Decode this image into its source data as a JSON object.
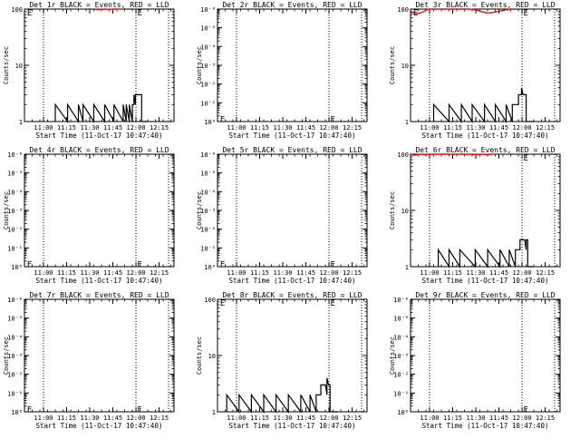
{
  "chart_data": [
    {
      "type": "line",
      "title": "Det 1r BLACK = Events, RED = LLD",
      "xlabel": "Start Time (11-Oct-17 10:47:40)",
      "ylabel": "Counts/sec",
      "yscale": "log",
      "ylim": [
        1,
        100
      ],
      "y_tick_labels": [
        "1",
        "10",
        "100"
      ],
      "xlim_minutes_after_start": [
        0,
        97
      ],
      "x_tick_labels": [
        "11:00",
        "11:15",
        "11:30",
        "11:45",
        "12:00",
        "12:15"
      ],
      "x_tick_positions_minutes": [
        12.33,
        27.33,
        42.33,
        57.33,
        72.33,
        87.33
      ],
      "dotted_vertical_lines_minutes": [
        12.33,
        72.33,
        93.5
      ],
      "series": [
        {
          "color": "#000000",
          "points": [
            [
              20,
              1
            ],
            [
              20,
              2
            ],
            [
              28,
              1
            ],
            [
              28,
              2
            ],
            [
              35,
              1
            ],
            [
              35,
              2
            ],
            [
              38,
              1
            ],
            [
              38,
              2
            ],
            [
              45,
              1
            ],
            [
              45,
              2
            ],
            [
              52,
              1
            ],
            [
              52,
              2
            ],
            [
              58,
              1
            ],
            [
              58,
              2
            ],
            [
              64,
              1
            ],
            [
              64,
              2
            ],
            [
              66,
              1
            ],
            [
              66,
              2
            ],
            [
              68,
              1
            ],
            [
              68,
              2
            ],
            [
              70,
              1
            ],
            [
              70,
              2
            ],
            [
              71,
              2
            ],
            [
              71,
              3
            ],
            [
              72,
              2
            ],
            [
              72,
              3
            ],
            [
              73,
              3
            ],
            [
              76,
              3
            ],
            [
              76,
              1
            ],
            [
              80,
              1
            ]
          ]
        },
        {
          "color": "#e01010",
          "points": [
            [
              45,
              100
            ],
            [
              48,
              98
            ],
            [
              52,
              100
            ],
            [
              55,
              99
            ],
            [
              58,
              100
            ],
            [
              62,
              100
            ]
          ]
        }
      ],
      "marker": {
        "label": "E",
        "positions": [
          [
            0.5,
            90
          ],
          [
            72,
            90
          ]
        ]
      }
    },
    {
      "type": "line",
      "title": "Det 2r BLACK = Events, RED = LLD",
      "xlabel": "Start Time (11-Oct-17 10:47:40)",
      "ylabel": "Counts/sec",
      "yscale": "log",
      "ylim": [
        1,
        1000000
      ],
      "y_tick_labels": [
        "10⁰",
        "10⁻¹",
        "10⁻²",
        "10⁻³",
        "10⁻⁴",
        "10⁻⁵",
        "10⁻⁶"
      ],
      "xlim_minutes_after_start": [
        0,
        97
      ],
      "x_tick_labels": [
        "11:00",
        "11:15",
        "11:30",
        "11:45",
        "12:00",
        "12:15"
      ],
      "x_tick_positions_minutes": [
        12.33,
        27.33,
        42.33,
        57.33,
        72.33,
        87.33
      ],
      "dotted_vertical_lines_minutes": [
        12.33,
        72.33,
        93.5
      ],
      "series": [],
      "marker": {
        "label": "E",
        "positions": [
          [
            0.5,
            1.5
          ],
          [
            72,
            1.5
          ]
        ]
      }
    },
    {
      "type": "line",
      "title": "Det 3r BLACK = Events, RED = LLD",
      "xlabel": "Start Time (11-Oct-17 10:47:40)",
      "ylabel": "Counts/sec",
      "yscale": "log",
      "ylim": [
        1,
        100
      ],
      "y_tick_labels": [
        "1",
        "10",
        "100"
      ],
      "xlim_minutes_after_start": [
        0,
        97
      ],
      "x_tick_labels": [
        "11:00",
        "11:15",
        "11:30",
        "11:45",
        "12:00",
        "12:15"
      ],
      "x_tick_positions_minutes": [
        12.33,
        27.33,
        42.33,
        57.33,
        72.33,
        87.33
      ],
      "dotted_vertical_lines_minutes": [
        12.33,
        72.33,
        93.5
      ],
      "series": [
        {
          "color": "#000000",
          "points": [
            [
              15,
              1
            ],
            [
              15,
              2
            ],
            [
              25,
              1
            ],
            [
              25,
              2
            ],
            [
              33,
              1
            ],
            [
              33,
              2
            ],
            [
              40,
              1
            ],
            [
              40,
              2
            ],
            [
              48,
              1
            ],
            [
              48,
              2
            ],
            [
              55,
              1
            ],
            [
              55,
              2
            ],
            [
              62,
              1
            ],
            [
              62,
              2
            ],
            [
              66,
              1
            ],
            [
              66,
              2
            ],
            [
              69,
              2
            ],
            [
              70,
              2
            ],
            [
              70,
              3
            ],
            [
              72,
              3
            ],
            [
              72,
              4
            ],
            [
              73,
              3
            ],
            [
              75,
              3
            ],
            [
              75,
              1
            ],
            [
              80,
              1
            ]
          ]
        },
        {
          "color": "#e01010",
          "points": [
            [
              0.5,
              88
            ],
            [
              4,
              82
            ],
            [
              8,
              88
            ],
            [
              10,
              96
            ],
            [
              12,
              100
            ],
            [
              38,
              100
            ],
            [
              42,
              97
            ],
            [
              46,
              90
            ],
            [
              50,
              85
            ],
            [
              54,
              88
            ],
            [
              58,
              92
            ],
            [
              62,
              97
            ],
            [
              65,
              100
            ],
            [
              68,
              100
            ]
          ]
        }
      ],
      "marker": {
        "label": "E",
        "positions": [
          [
            0.5,
            90
          ],
          [
            72,
            90
          ]
        ]
      }
    },
    {
      "type": "line",
      "title": "Det 4r BLACK = Events, RED = LLD",
      "xlabel": "Start Time (11-Oct-17 10:47:40)",
      "ylabel": "Counts/sec",
      "yscale": "log",
      "ylim": [
        1,
        1000000
      ],
      "y_tick_labels": [
        "10⁰",
        "10⁻¹",
        "10⁻²",
        "10⁻³",
        "10⁻⁴",
        "10⁻⁵",
        "10⁻⁶"
      ],
      "xlim_minutes_after_start": [
        0,
        97
      ],
      "x_tick_labels": [
        "11:00",
        "11:15",
        "11:30",
        "11:45",
        "12:00",
        "12:15"
      ],
      "x_tick_positions_minutes": [
        12.33,
        27.33,
        42.33,
        57.33,
        72.33,
        87.33
      ],
      "dotted_vertical_lines_minutes": [
        12.33,
        72.33,
        93.5
      ],
      "series": [],
      "marker": {
        "label": "E",
        "positions": [
          [
            0.5,
            1.5
          ],
          [
            72,
            1.5
          ]
        ]
      }
    },
    {
      "type": "line",
      "title": "Det 5r BLACK = Events, RED = LLD",
      "xlabel": "Start Time (11-Oct-17 10:47:40)",
      "ylabel": "Counts/sec",
      "yscale": "log",
      "ylim": [
        1,
        1000000
      ],
      "y_tick_labels": [
        "10⁰",
        "10⁻¹",
        "10⁻²",
        "10⁻³",
        "10⁻⁴",
        "10⁻⁵",
        "10⁻⁶"
      ],
      "xlim_minutes_after_start": [
        0,
        97
      ],
      "x_tick_labels": [
        "11:00",
        "11:15",
        "11:30",
        "11:45",
        "12:00",
        "12:15"
      ],
      "x_tick_positions_minutes": [
        12.33,
        27.33,
        42.33,
        57.33,
        72.33,
        87.33
      ],
      "dotted_vertical_lines_minutes": [
        12.33,
        72.33,
        93.5
      ],
      "series": [],
      "marker": {
        "label": "E",
        "positions": [
          [
            0.5,
            1.5
          ],
          [
            72,
            1.5
          ]
        ]
      }
    },
    {
      "type": "line",
      "title": "Det 6r BLACK = Events, RED = LLD",
      "xlabel": "Start Time (11-Oct-17 10:47:40)",
      "ylabel": "Counts/sec",
      "yscale": "log",
      "ylim": [
        1,
        100
      ],
      "y_tick_labels": [
        "1",
        "10",
        "100"
      ],
      "xlim_minutes_after_start": [
        0,
        97
      ],
      "x_tick_labels": [
        "11:00",
        "11:15",
        "11:30",
        "11:45",
        "12:00",
        "12:15"
      ],
      "x_tick_positions_minutes": [
        12.33,
        27.33,
        42.33,
        57.33,
        72.33,
        87.33
      ],
      "dotted_vertical_lines_minutes": [
        12.33,
        72.33,
        93.5
      ],
      "series": [
        {
          "color": "#000000",
          "points": [
            [
              18,
              1
            ],
            [
              18,
              2
            ],
            [
              25,
              1
            ],
            [
              25,
              2
            ],
            [
              32,
              1
            ],
            [
              32,
              2
            ],
            [
              42,
              1
            ],
            [
              42,
              2
            ],
            [
              50,
              1
            ],
            [
              50,
              2
            ],
            [
              58,
              1
            ],
            [
              58,
              2
            ],
            [
              64,
              1
            ],
            [
              64,
              2
            ],
            [
              68,
              1
            ],
            [
              68,
              2
            ],
            [
              70,
              2
            ],
            [
              71,
              2
            ],
            [
              71,
              3
            ],
            [
              74,
              3
            ],
            [
              75,
              2
            ],
            [
              75,
              3
            ],
            [
              76,
              3
            ],
            [
              76,
              1
            ],
            [
              80,
              1
            ]
          ]
        },
        {
          "color": "#e01010",
          "points": [
            [
              0.5,
              98
            ],
            [
              3,
              96
            ],
            [
              6,
              100
            ],
            [
              10,
              98
            ],
            [
              12,
              100
            ],
            [
              40,
              100
            ],
            [
              43,
              98
            ],
            [
              46,
              100
            ],
            [
              50,
              98
            ],
            [
              53,
              100
            ]
          ]
        }
      ],
      "marker": {
        "label": "E",
        "positions": [
          [
            72,
            90
          ]
        ]
      }
    },
    {
      "type": "line",
      "title": "Det 7r BLACK = Events, RED = LLD",
      "xlabel": "Start Time (11-Oct-17 10:47:40)",
      "ylabel": "Counts/sec",
      "yscale": "log",
      "ylim": [
        1,
        1000000
      ],
      "y_tick_labels": [
        "10⁰",
        "10⁻¹",
        "10⁻²",
        "10⁻³",
        "10⁻⁴",
        "10⁻⁵",
        "10⁻⁶"
      ],
      "xlim_minutes_after_start": [
        0,
        97
      ],
      "x_tick_labels": [
        "11:00",
        "11:15",
        "11:30",
        "11:45",
        "12:00",
        "12:15"
      ],
      "x_tick_positions_minutes": [
        12.33,
        27.33,
        42.33,
        57.33,
        72.33,
        87.33
      ],
      "dotted_vertical_lines_minutes": [
        12.33,
        72.33,
        93.5
      ],
      "series": [],
      "marker": {
        "label": "E",
        "positions": [
          [
            0.5,
            1.5
          ],
          [
            72,
            1.5
          ]
        ]
      }
    },
    {
      "type": "line",
      "title": "Det 8r BLACK = Events, RED = LLD",
      "xlabel": "Start Time (11-Oct-17 10:47:40)",
      "ylabel": "Counts/sec",
      "yscale": "log",
      "ylim": [
        1,
        100
      ],
      "y_tick_labels": [
        "1",
        "10",
        "100"
      ],
      "xlim_minutes_after_start": [
        0,
        97
      ],
      "x_tick_labels": [
        "11:00",
        "11:15",
        "11:30",
        "11:45",
        "12:00",
        "12:15"
      ],
      "x_tick_positions_minutes": [
        12.33,
        27.33,
        42.33,
        57.33,
        72.33,
        87.33
      ],
      "dotted_vertical_lines_minutes": [
        12.33,
        72.33,
        93.5
      ],
      "series": [
        {
          "color": "#000000",
          "points": [
            [
              6,
              1
            ],
            [
              6,
              2
            ],
            [
              14,
              1
            ],
            [
              14,
              2
            ],
            [
              22,
              1
            ],
            [
              22,
              2
            ],
            [
              30,
              1
            ],
            [
              30,
              2
            ],
            [
              38,
              1
            ],
            [
              38,
              2
            ],
            [
              46,
              1
            ],
            [
              46,
              2
            ],
            [
              54,
              1
            ],
            [
              54,
              2
            ],
            [
              60,
              1
            ],
            [
              60,
              2
            ],
            [
              64,
              1
            ],
            [
              64,
              2
            ],
            [
              66,
              2
            ],
            [
              67,
              2
            ],
            [
              67,
              3
            ],
            [
              70,
              3
            ],
            [
              71,
              2
            ],
            [
              71,
              4
            ],
            [
              72,
              3
            ],
            [
              73,
              3
            ],
            [
              73,
              1
            ],
            [
              78,
              1
            ]
          ]
        }
      ],
      "marker": {
        "label": "E",
        "positions": [
          [
            0.5,
            90
          ],
          [
            72,
            90
          ]
        ]
      }
    },
    {
      "type": "line",
      "title": "Det 9r BLACK = Events, RED = LLD",
      "xlabel": "Start Time (11-Oct-17 10:47:40)",
      "ylabel": "Counts/sec",
      "yscale": "log",
      "ylim": [
        1,
        1000000
      ],
      "y_tick_labels": [
        "10⁰",
        "10⁻¹",
        "10⁻²",
        "10⁻³",
        "10⁻⁴",
        "10⁻⁵",
        "10⁻⁶"
      ],
      "xlim_minutes_after_start": [
        0,
        97
      ],
      "x_tick_labels": [
        "11:00",
        "11:15",
        "11:30",
        "11:45",
        "12:00",
        "12:15"
      ],
      "x_tick_positions_minutes": [
        12.33,
        27.33,
        42.33,
        57.33,
        72.33,
        87.33
      ],
      "dotted_vertical_lines_minutes": [
        12.33,
        72.33,
        93.5
      ],
      "series": [],
      "marker": {
        "label": "E",
        "positions": [
          [
            72,
            1.5
          ]
        ]
      }
    }
  ]
}
